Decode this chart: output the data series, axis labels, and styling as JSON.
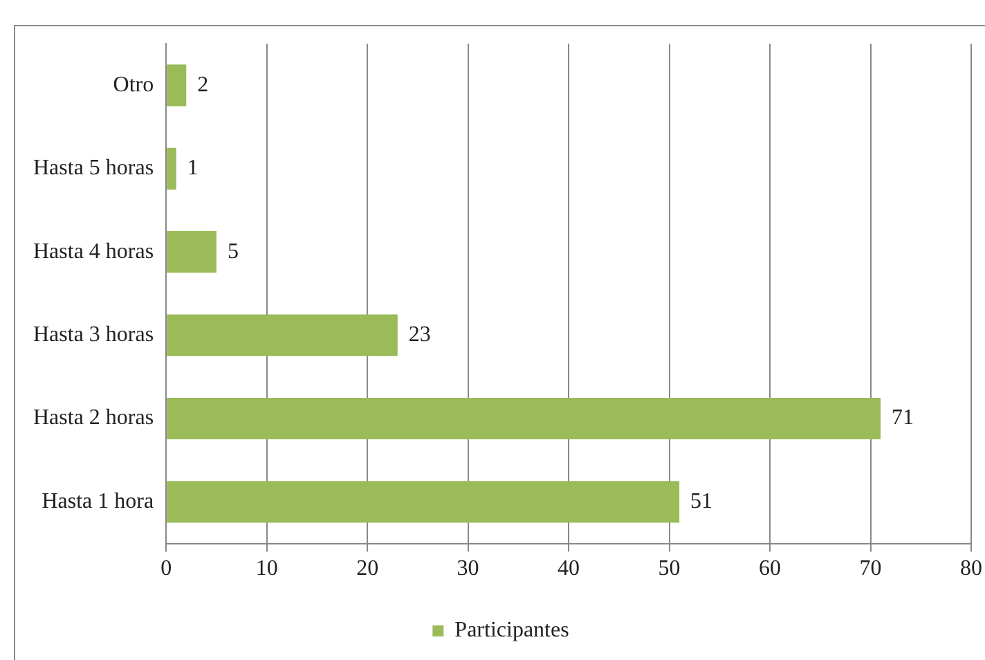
{
  "chart_data": {
    "type": "bar",
    "orientation": "horizontal",
    "categories": [
      "Otro",
      "Hasta 5 horas",
      "Hasta 4 horas",
      "Hasta 3 horas",
      "Hasta 2 horas",
      "Hasta 1 hora"
    ],
    "series": [
      {
        "name": "Participantes",
        "color": "#9bbb59",
        "values": [
          2,
          1,
          5,
          23,
          71,
          51
        ]
      }
    ],
    "xlim": [
      0,
      80
    ],
    "xticks": [
      0,
      10,
      20,
      30,
      40,
      50,
      60,
      70,
      80
    ],
    "grid": "x",
    "legend": "bottom",
    "data_labels": true
  }
}
